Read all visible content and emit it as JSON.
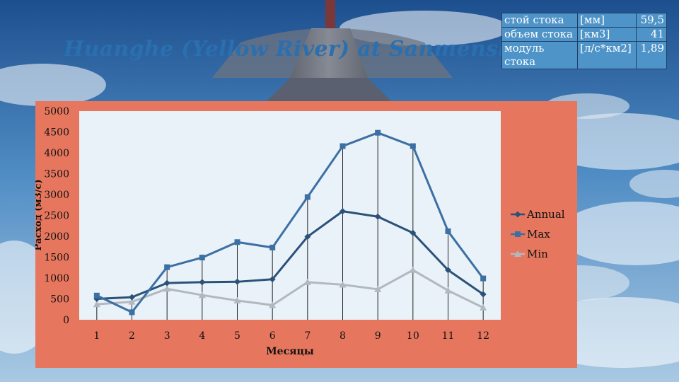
{
  "slide": {
    "title": "Huanghe (Yellow River) at Sanmensha"
  },
  "stats_table": {
    "rows": [
      [
        "стой стока",
        "[мм]",
        "59,5"
      ],
      [
        "объем стока",
        "[км3]",
        "41"
      ],
      [
        "модуль стока",
        "[л/с*км2]",
        "1,89"
      ]
    ]
  },
  "colors": {
    "chart_bg": "#e6775e",
    "plot_bg": "#e9f2f8",
    "annual": "#2b5178",
    "max": "#3c6fa3",
    "min": "#b2b8c0",
    "title": "#2a6fb0",
    "table_bg": "#4f94c8"
  },
  "chart_data": {
    "type": "line",
    "title": "",
    "xlabel": "Месяцы",
    "ylabel": "Расход (м3/с)",
    "categories": [
      "1",
      "2",
      "3",
      "4",
      "5",
      "6",
      "7",
      "8",
      "9",
      "10",
      "11",
      "12"
    ],
    "yticks": [
      "0",
      "500",
      "1000",
      "1500",
      "2000",
      "2500",
      "3000",
      "3500",
      "4000",
      "4500",
      "5000"
    ],
    "ylim": [
      0,
      5000
    ],
    "grid": "vertical drop lines at each month",
    "legend_position": "right",
    "series": [
      {
        "name": "Annual",
        "marker": "diamond",
        "values": [
          500,
          540,
          880,
          900,
          910,
          970,
          1990,
          2600,
          2470,
          2080,
          1190,
          610
        ]
      },
      {
        "name": "Max",
        "marker": "square",
        "values": [
          580,
          180,
          1260,
          1490,
          1860,
          1730,
          2940,
          4160,
          4480,
          4160,
          2120,
          990
        ]
      },
      {
        "name": "Min",
        "marker": "triangle",
        "values": [
          370,
          430,
          740,
          590,
          460,
          350,
          900,
          840,
          730,
          1190,
          700,
          290
        ]
      }
    ]
  }
}
